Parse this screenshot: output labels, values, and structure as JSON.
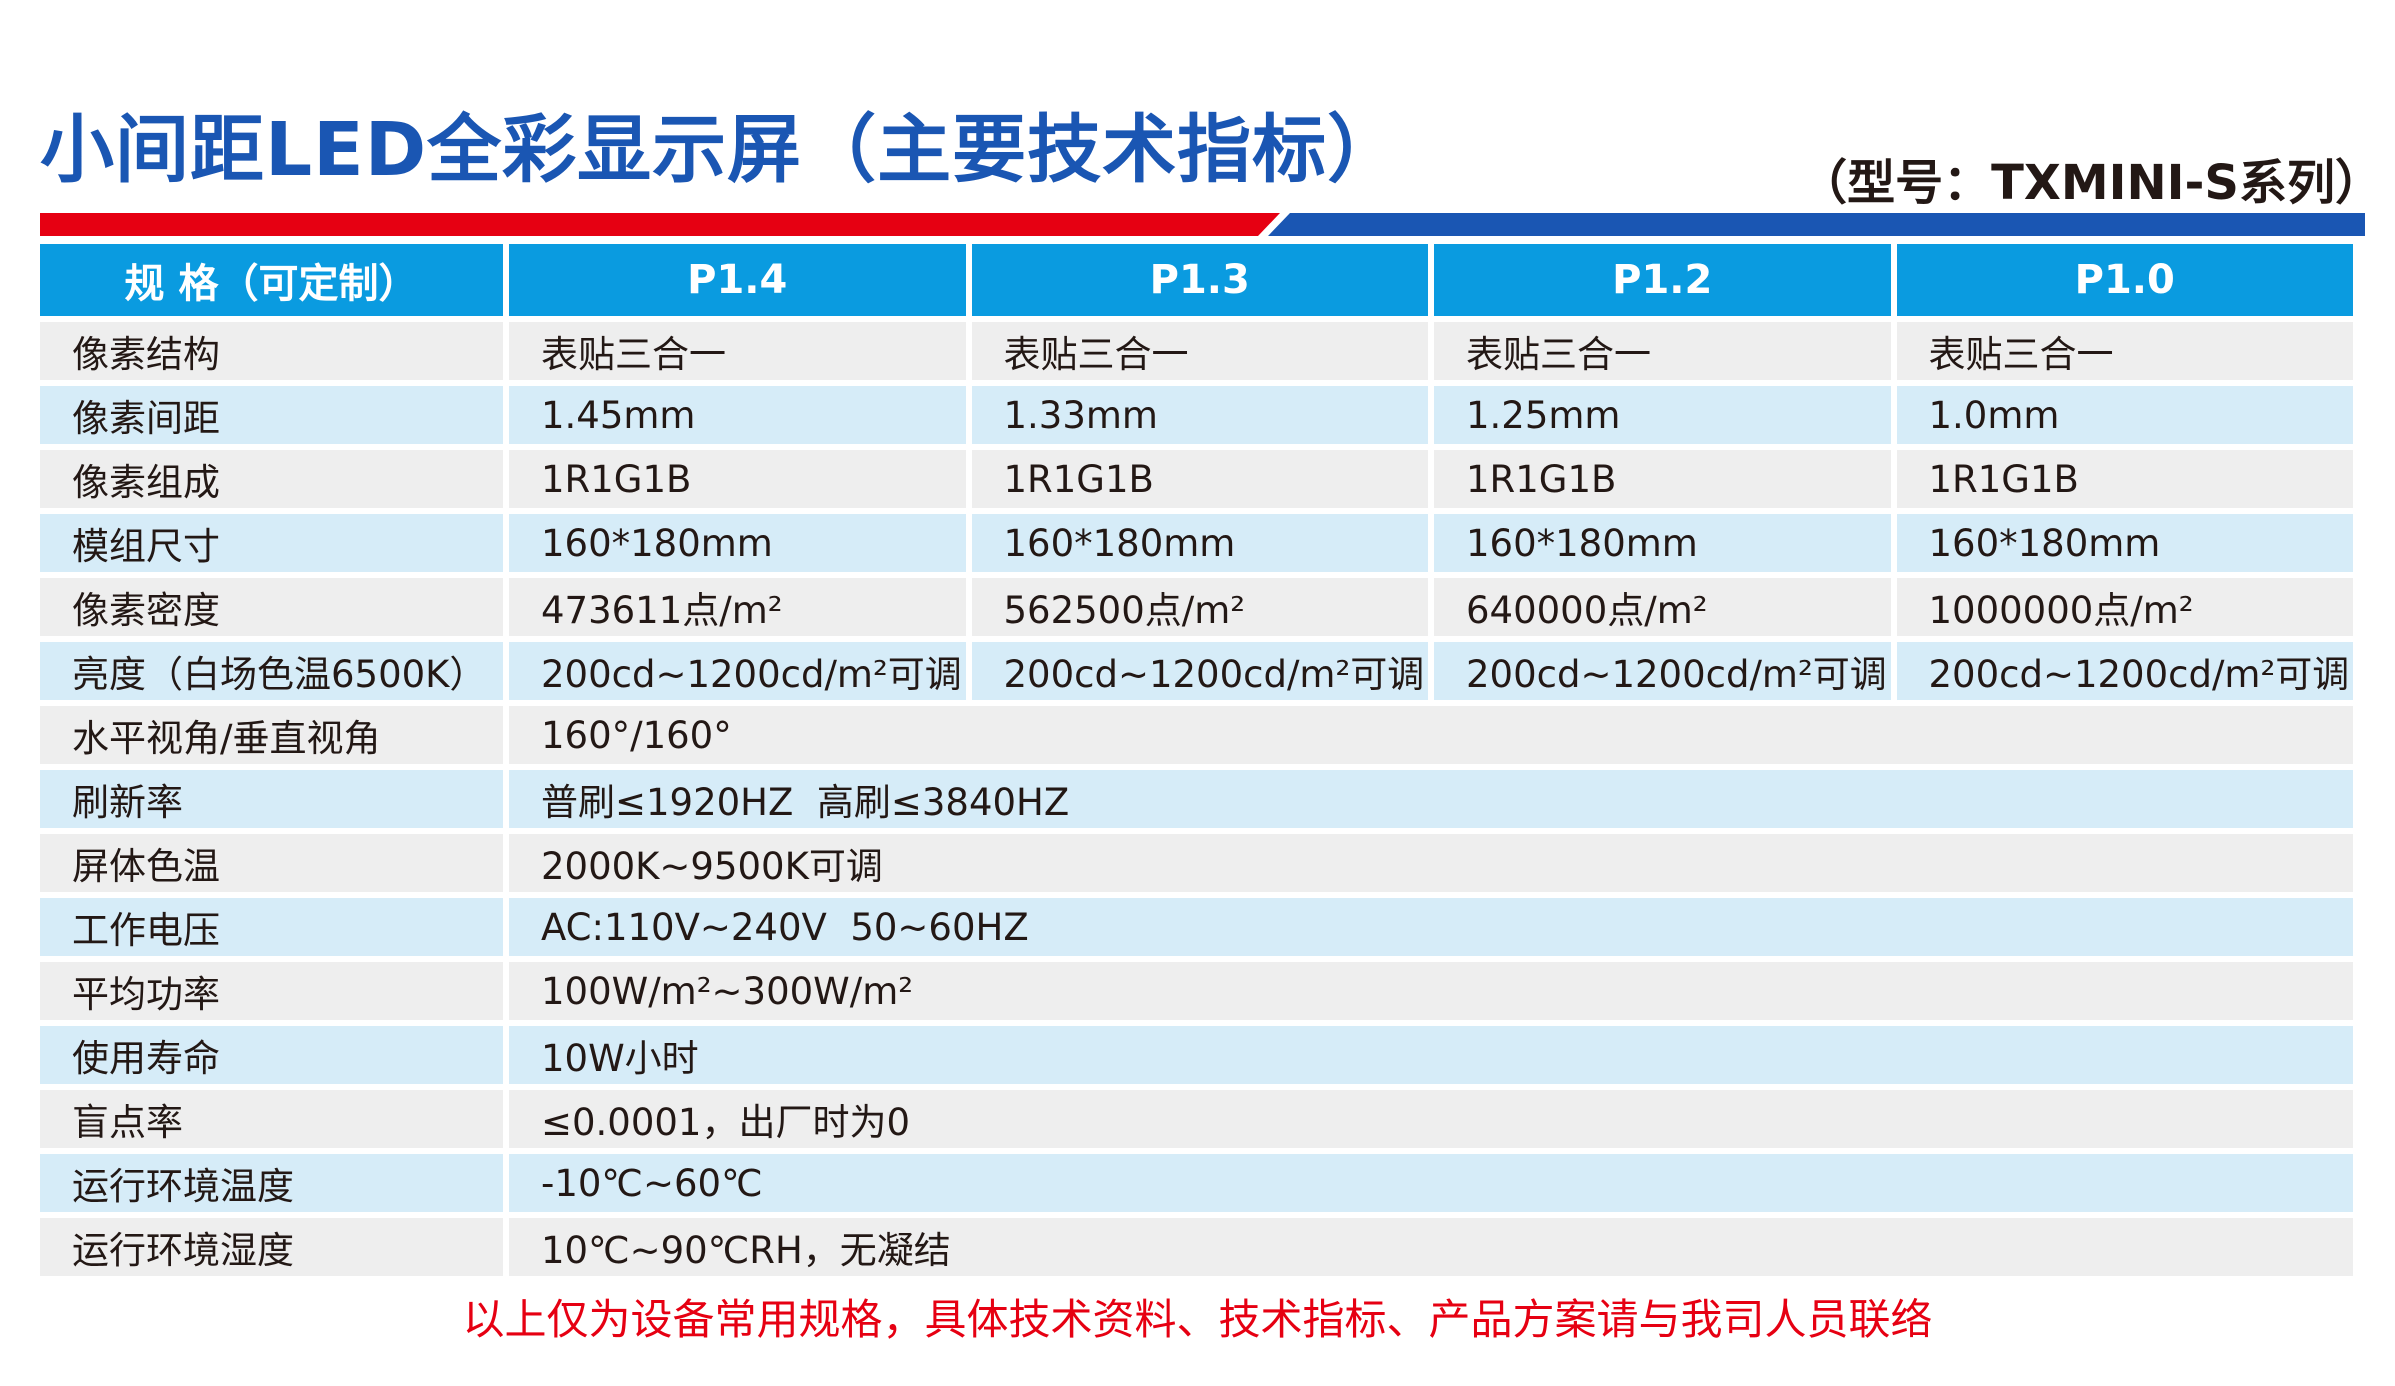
{
  "title": "小间距LED全彩显示屏（主要技术指标）",
  "model": "（型号：TXMINI-S系列）",
  "colors": {
    "title": "#1a56b3",
    "header": "#0a9be0",
    "accent_red": "#e60012",
    "row_gray": "#eeeeee",
    "row_blue": "#d6ecf8"
  },
  "table": {
    "headers": [
      "规 格（可定制）",
      "P1.4",
      "P1.3",
      "P1.2",
      "P1.0"
    ],
    "rows": [
      {
        "label": "像素结构",
        "values": [
          "表贴三合一",
          "表贴三合一",
          "表贴三合一",
          "表贴三合一"
        ]
      },
      {
        "label": "像素间距",
        "values": [
          "1.45mm",
          "1.33mm",
          "1.25mm",
          "1.0mm"
        ]
      },
      {
        "label": "像素组成",
        "values": [
          "1R1G1B",
          "1R1G1B",
          "1R1G1B",
          "1R1G1B"
        ]
      },
      {
        "label": "模组尺寸",
        "values": [
          "160*180mm",
          "160*180mm",
          "160*180mm",
          "160*180mm"
        ]
      },
      {
        "label": "像素密度",
        "values": [
          "473611点/m²",
          "562500点/m²",
          "640000点/m²",
          "1000000点/m²"
        ]
      },
      {
        "label": "亮度（白场色温6500K）",
        "values": [
          "200cd~1200cd/m²可调",
          "200cd~1200cd/m²可调",
          "200cd~1200cd/m²可调",
          "200cd~1200cd/m²可调"
        ]
      },
      {
        "label": "水平视角/垂直视角",
        "value": "160°/160°"
      },
      {
        "label": "刷新率",
        "value": "普刷≤1920HZ  高刷≤3840HZ"
      },
      {
        "label": "屏体色温",
        "value": "2000K~9500K可调"
      },
      {
        "label": "工作电压",
        "value": "AC:110V~240V  50~60HZ"
      },
      {
        "label": "平均功率",
        "value": "100W/m²~300W/m²"
      },
      {
        "label": "使用寿命",
        "value": "10W小时"
      },
      {
        "label": "盲点率",
        "value": "≤0.0001，出厂时为0"
      },
      {
        "label": "运行环境温度",
        "value": "-10℃~60℃"
      },
      {
        "label": "运行环境湿度",
        "value": "10℃~90℃RH，无凝结"
      }
    ]
  },
  "footer": "以上仅为设备常用规格，具体技术资料、技术指标、产品方案请与我司人员联络"
}
